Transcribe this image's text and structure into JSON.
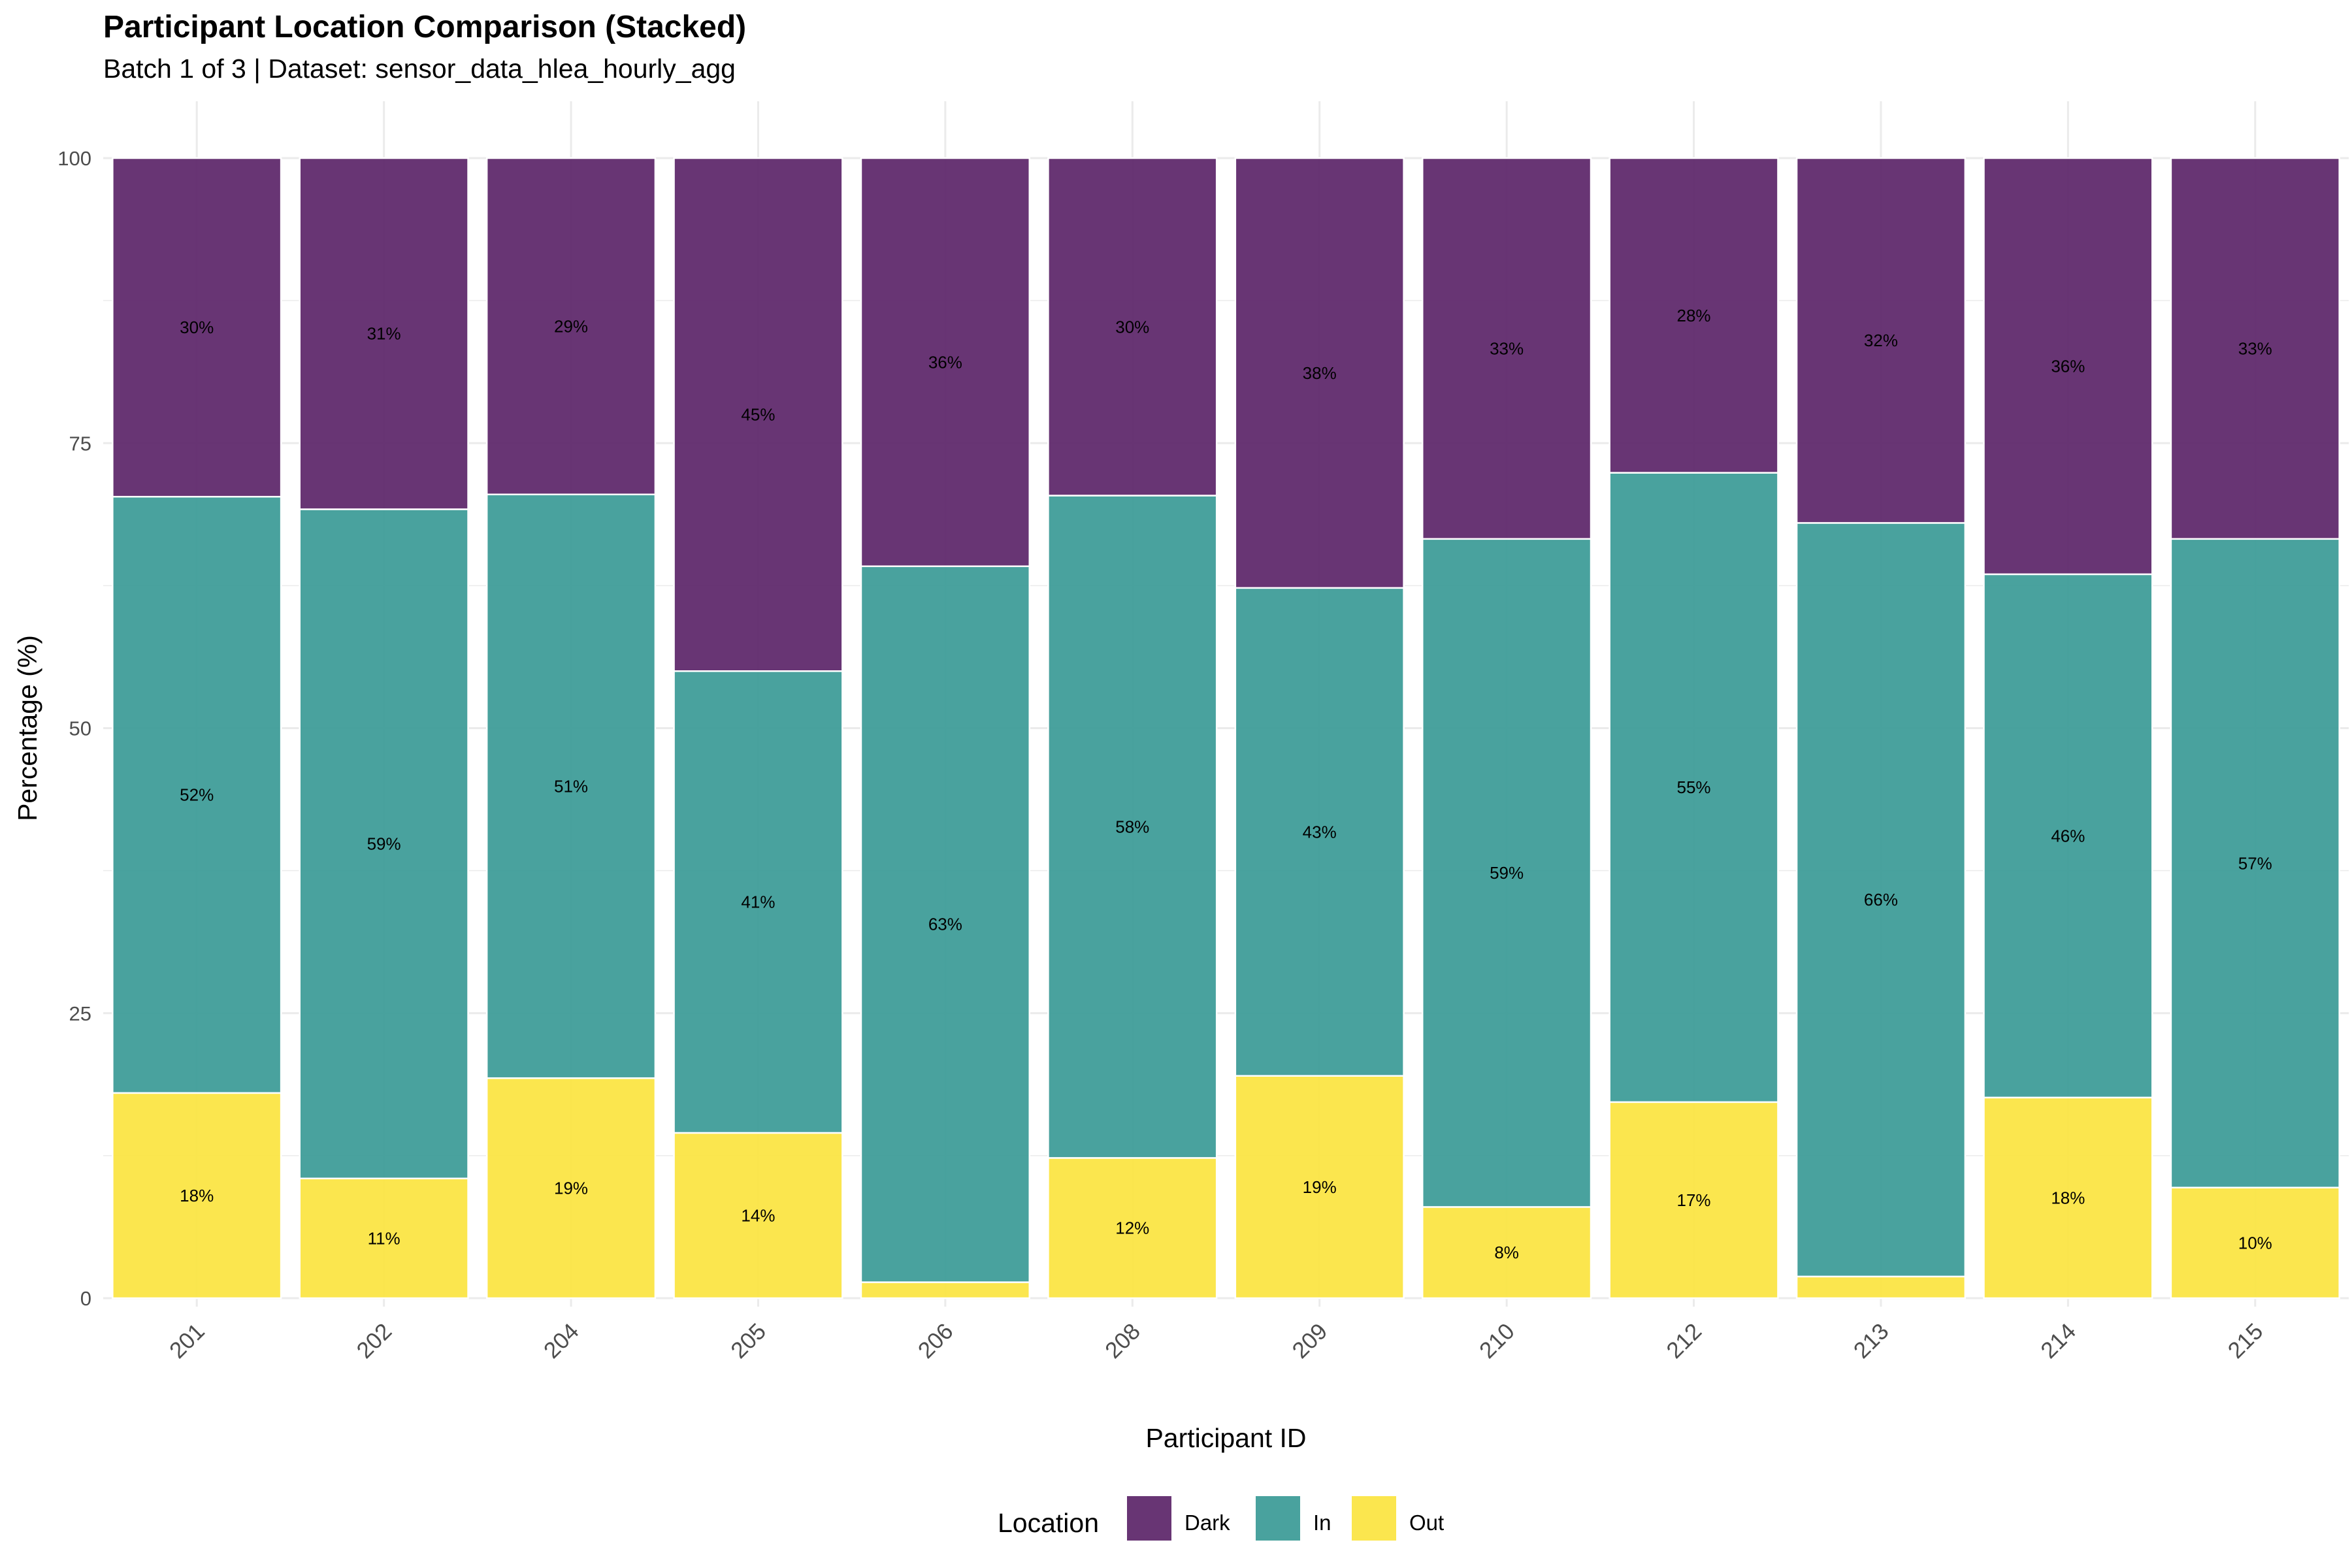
{
  "title": "Participant Location Comparison (Stacked)",
  "subtitle": "Batch 1 of 3 | Dataset: sensor_data_hlea_hourly_agg",
  "colors": {
    "Dark": "#5b2468",
    "In": "#3a9a96",
    "Out": "#fbe43f"
  },
  "chart_data": {
    "type": "bar",
    "stacked": true,
    "xlabel": "Participant ID",
    "ylabel": "Percentage (%)",
    "ylim": [
      0,
      100
    ],
    "yticks": [
      0,
      25,
      50,
      75,
      100
    ],
    "grid": true,
    "legend_position": "bottom",
    "legend_title": "Location",
    "categories": [
      "201",
      "202",
      "204",
      "205",
      "206",
      "208",
      "209",
      "210",
      "212",
      "213",
      "214",
      "215"
    ],
    "series": [
      {
        "name": "Out",
        "values": [
          18,
          10.5,
          19.3,
          14.5,
          1.4,
          12.3,
          19.5,
          8,
          17.2,
          1.9,
          17.6,
          9.7
        ],
        "labels": [
          "18%",
          "11%",
          "19%",
          "14%",
          "",
          "12%",
          "19%",
          "8%",
          "17%",
          "",
          "18%",
          "10%"
        ]
      },
      {
        "name": "In",
        "values": [
          52.3,
          58.7,
          51.2,
          40.5,
          62.8,
          58.1,
          42.8,
          58.6,
          55.2,
          66.1,
          45.9,
          56.9
        ],
        "labels": [
          "52%",
          "59%",
          "51%",
          "41%",
          "63%",
          "58%",
          "43%",
          "59%",
          "55%",
          "66%",
          "46%",
          "57%"
        ]
      },
      {
        "name": "Dark",
        "values": [
          29.7,
          30.8,
          29.5,
          45,
          35.8,
          29.6,
          37.7,
          33.4,
          27.6,
          32,
          36.5,
          33.4
        ],
        "labels": [
          "30%",
          "31%",
          "29%",
          "45%",
          "36%",
          "30%",
          "38%",
          "33%",
          "28%",
          "32%",
          "36%",
          "33%"
        ]
      }
    ],
    "legend_order": [
      "Dark",
      "In",
      "Out"
    ]
  }
}
